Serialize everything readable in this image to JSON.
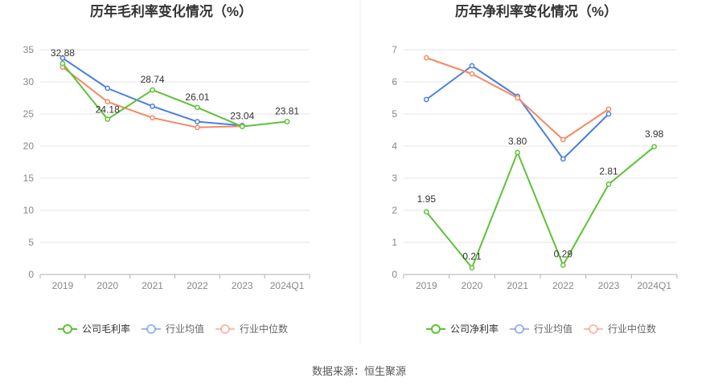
{
  "colors": {
    "company": "#5dc238",
    "industry_avg": "#4a7fe0",
    "industry_median": "#f48a62",
    "grid": "#e6e6e6",
    "axis": "#b0b0b0",
    "tick_text": "#888888",
    "title_text": "#333333",
    "label_text": "#333333",
    "divider": "#eeeeee"
  },
  "source_label": "数据来源：恒生聚源",
  "chart_data": [
    {
      "type": "line",
      "title": "历年毛利率变化情况（%）",
      "categories": [
        "2019",
        "2020",
        "2021",
        "2022",
        "2023",
        "2024Q1"
      ],
      "ylim": [
        0,
        35
      ],
      "yticks": [
        0,
        5,
        10,
        15,
        20,
        25,
        30,
        35
      ],
      "grid": true,
      "legend_position": "bottom",
      "series": [
        {
          "name": "公司毛利率",
          "key": "company",
          "values": [
            32.88,
            24.18,
            28.74,
            26.01,
            23.04,
            23.81
          ],
          "labels": [
            "32.88",
            "24.18",
            "28.74",
            "26.01",
            "23.04",
            "23.81"
          ]
        },
        {
          "name": "行业均值",
          "key": "industry_avg",
          "values": [
            33.7,
            29.0,
            26.2,
            23.8,
            23.2,
            null
          ]
        },
        {
          "name": "行业中位数",
          "key": "industry_median",
          "values": [
            32.3,
            26.9,
            24.4,
            22.9,
            23.1,
            null
          ]
        }
      ]
    },
    {
      "type": "line",
      "title": "历年净利率变化情况（%）",
      "categories": [
        "2019",
        "2020",
        "2021",
        "2022",
        "2023",
        "2024Q1"
      ],
      "ylim": [
        0,
        7
      ],
      "yticks": [
        0,
        1,
        2,
        3,
        4,
        5,
        6,
        7
      ],
      "grid": true,
      "legend_position": "bottom",
      "series": [
        {
          "name": "公司净利率",
          "key": "company",
          "values": [
            1.95,
            0.21,
            3.8,
            0.29,
            2.81,
            3.98
          ],
          "labels": [
            "1.95",
            "0.21",
            "3.80",
            "0.29",
            "2.81",
            "3.98"
          ]
        },
        {
          "name": "行业均值",
          "key": "industry_avg",
          "values": [
            5.45,
            6.5,
            5.55,
            3.6,
            5.0,
            null
          ]
        },
        {
          "name": "行业中位数",
          "key": "industry_median",
          "values": [
            6.75,
            6.25,
            5.5,
            4.2,
            5.15,
            null
          ]
        }
      ]
    }
  ]
}
